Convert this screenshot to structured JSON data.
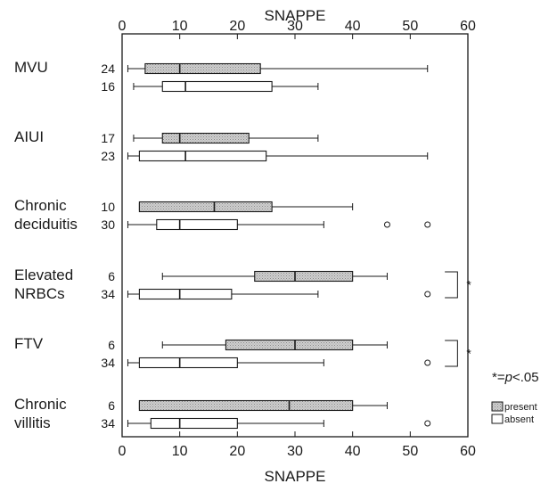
{
  "chart_data": {
    "type": "box",
    "xlabel_top": "SNAPPE",
    "xlabel_bottom": "SNAPPE",
    "xlim": [
      0,
      60
    ],
    "xticks": [
      0,
      10,
      20,
      30,
      40,
      50,
      60
    ],
    "significance_note": "*=p<.05",
    "significance_note_parts": {
      "prefix": "*=",
      "italic": "p",
      "suffix": "<.05"
    },
    "legend": [
      {
        "label": "present",
        "key": "present"
      },
      {
        "label": "absent",
        "key": "absent"
      }
    ],
    "colors": {
      "present_fill": "#c8c8c8",
      "absent_fill": "#ffffff",
      "stroke": "#1a1a1a"
    },
    "groups": [
      {
        "name": [
          "MVU"
        ],
        "boxes": [
          {
            "status": "present",
            "n": "24",
            "whisker_low": 1,
            "q1": 4,
            "median": 10,
            "q3": 24,
            "whisker_high": 53,
            "outliers": []
          },
          {
            "status": "absent",
            "n": "16",
            "whisker_low": 2,
            "q1": 7,
            "median": 11,
            "q3": 26,
            "whisker_high": 34,
            "outliers": []
          }
        ],
        "significant": false
      },
      {
        "name": [
          "AIUI"
        ],
        "boxes": [
          {
            "status": "present",
            "n": "17",
            "whisker_low": 2,
            "q1": 7,
            "median": 10,
            "q3": 22,
            "whisker_high": 34,
            "outliers": []
          },
          {
            "status": "absent",
            "n": "23",
            "whisker_low": 1,
            "q1": 3,
            "median": 11,
            "q3": 25,
            "whisker_high": 53,
            "outliers": []
          }
        ],
        "significant": false
      },
      {
        "name": [
          "Chronic",
          "deciduitis"
        ],
        "boxes": [
          {
            "status": "present",
            "n": "10",
            "whisker_low": 3,
            "q1": 3,
            "median": 16,
            "q3": 26,
            "whisker_high": 40,
            "outliers": []
          },
          {
            "status": "absent",
            "n": "30",
            "whisker_low": 1,
            "q1": 6,
            "median": 10,
            "q3": 20,
            "whisker_high": 35,
            "outliers": [
              46,
              53
            ]
          }
        ],
        "significant": false
      },
      {
        "name": [
          "Elevated",
          "NRBCs"
        ],
        "boxes": [
          {
            "status": "present",
            "n": "6",
            "whisker_low": 7,
            "q1": 23,
            "median": 30,
            "q3": 40,
            "whisker_high": 46,
            "outliers": []
          },
          {
            "status": "absent",
            "n": "34",
            "whisker_low": 1,
            "q1": 3,
            "median": 10,
            "q3": 19,
            "whisker_high": 34,
            "outliers": [
              53
            ]
          }
        ],
        "significant": true,
        "significance_marker": "*"
      },
      {
        "name": [
          "FTV"
        ],
        "boxes": [
          {
            "status": "present",
            "n": "6",
            "whisker_low": 7,
            "q1": 18,
            "median": 30,
            "q3": 40,
            "whisker_high": 46,
            "outliers": []
          },
          {
            "status": "absent",
            "n": "34",
            "whisker_low": 1,
            "q1": 3,
            "median": 10,
            "q3": 20,
            "whisker_high": 35,
            "outliers": [
              53
            ]
          }
        ],
        "significant": true,
        "significance_marker": "*"
      },
      {
        "name": [
          "Chronic",
          "villitis"
        ],
        "boxes": [
          {
            "status": "present",
            "n": "6",
            "whisker_low": 3,
            "q1": 3,
            "median": 29,
            "q3": 40,
            "whisker_high": 46,
            "outliers": []
          },
          {
            "status": "absent",
            "n": "34",
            "whisker_low": 1,
            "q1": 5,
            "median": 10,
            "q3": 20,
            "whisker_high": 35,
            "outliers": [
              53
            ]
          }
        ],
        "significant": false
      }
    ]
  }
}
